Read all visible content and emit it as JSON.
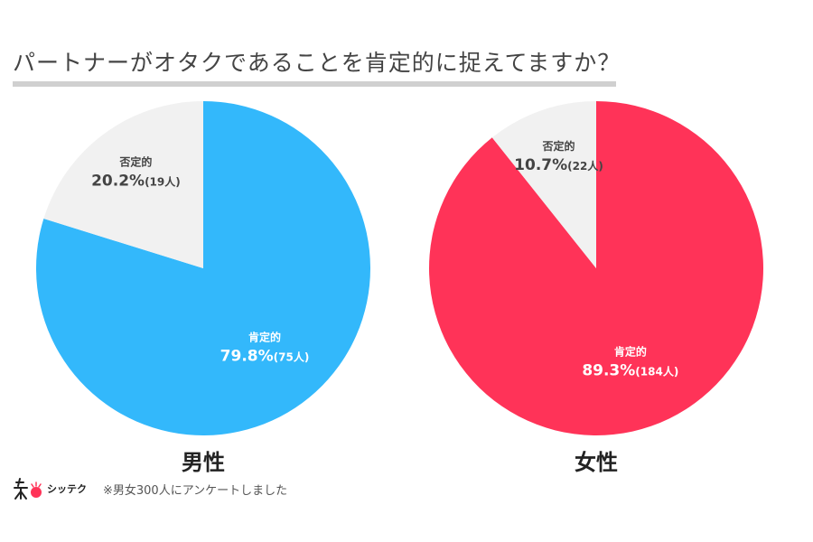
{
  "title": "パートナーがオタクであることを肯定的に捉えてますか？",
  "colors": {
    "positive_male": "#33b8fb",
    "positive_female": "#ff3358",
    "negative": "#f1f1f1"
  },
  "chart_data": [
    {
      "type": "pie",
      "label": "男性",
      "slices": [
        {
          "name": "肯定的",
          "percent": 79.8,
          "count_text": "(75人)",
          "color": "#33b8fb",
          "text_color": "#ffffff"
        },
        {
          "name": "否定的",
          "percent": 20.2,
          "count_text": "(19人)",
          "color": "#f1f1f1",
          "text_color": "#444444"
        }
      ]
    },
    {
      "type": "pie",
      "label": "女性",
      "slices": [
        {
          "name": "肯定的",
          "percent": 89.3,
          "count_text": "(184人)",
          "color": "#ff3358",
          "text_color": "#ffffff"
        },
        {
          "name": "否定的",
          "percent": 10.7,
          "count_text": "(22人)",
          "color": "#f1f1f1",
          "text_color": "#444444"
        }
      ]
    }
  ],
  "footer": {
    "logo_text": "シッテク",
    "note": "※男女300人にアンケートしました"
  }
}
